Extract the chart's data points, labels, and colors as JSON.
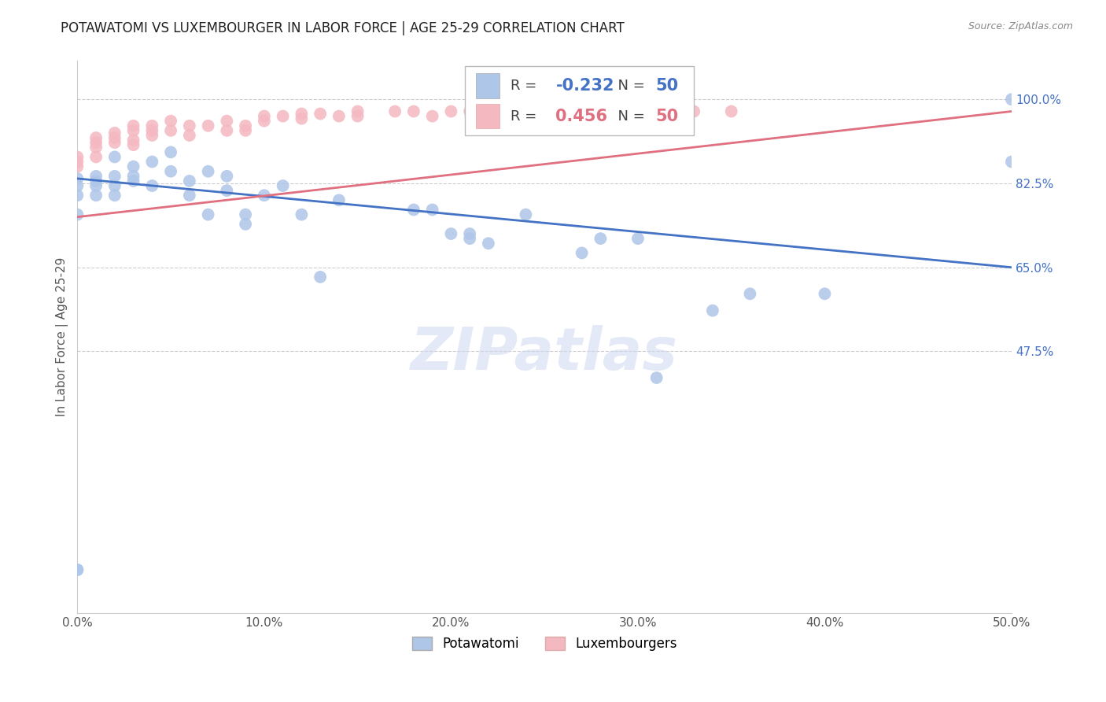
{
  "title": "POTAWATOMI VS LUXEMBOURGER IN LABOR FORCE | AGE 25-29 CORRELATION CHART",
  "source": "Source: ZipAtlas.com",
  "ylabel": "In Labor Force | Age 25-29",
  "x_min": 0.0,
  "x_max": 0.5,
  "y_min": -0.05,
  "y_max": 1.08,
  "x_tick_labels": [
    "0.0%",
    "10.0%",
    "20.0%",
    "30.0%",
    "40.0%",
    "50.0%"
  ],
  "x_tick_vals": [
    0.0,
    0.1,
    0.2,
    0.3,
    0.4,
    0.5
  ],
  "y_tick_labels": [
    "47.5%",
    "65.0%",
    "82.5%",
    "100.0%"
  ],
  "y_tick_vals": [
    0.475,
    0.65,
    0.825,
    1.0
  ],
  "grid_color": "#cccccc",
  "background_color": "#ffffff",
  "potawatomi_color": "#aec6e8",
  "luxembourger_color": "#f4b8c1",
  "potawatomi_line_color": "#4472c4",
  "luxembourger_line_color": "#e07080",
  "legend_blue_label": "Potawatomi",
  "legend_pink_label": "Luxembourgers",
  "r_blue": -0.232,
  "n_blue": 50,
  "r_pink": 0.456,
  "n_pink": 50,
  "watermark": "ZIPatlas",
  "potawatomi_x": [
    0.0,
    0.0,
    0.0,
    0.0,
    0.01,
    0.01,
    0.01,
    0.01,
    0.02,
    0.02,
    0.02,
    0.02,
    0.03,
    0.03,
    0.03,
    0.04,
    0.04,
    0.05,
    0.05,
    0.06,
    0.06,
    0.07,
    0.07,
    0.08,
    0.08,
    0.09,
    0.09,
    0.1,
    0.11,
    0.12,
    0.13,
    0.14,
    0.18,
    0.2,
    0.21,
    0.22,
    0.24,
    0.27,
    0.28,
    0.3,
    0.31,
    0.34,
    0.36,
    0.4,
    0.19,
    0.21,
    0.5,
    0.5,
    0.0,
    0.0
  ],
  "potawatomi_y": [
    0.835,
    0.82,
    0.8,
    0.76,
    0.84,
    0.83,
    0.82,
    0.8,
    0.88,
    0.84,
    0.82,
    0.8,
    0.86,
    0.84,
    0.83,
    0.87,
    0.82,
    0.89,
    0.85,
    0.83,
    0.8,
    0.85,
    0.76,
    0.84,
    0.81,
    0.76,
    0.74,
    0.8,
    0.82,
    0.76,
    0.63,
    0.79,
    0.77,
    0.72,
    0.72,
    0.7,
    0.76,
    0.68,
    0.71,
    0.71,
    0.42,
    0.56,
    0.595,
    0.595,
    0.77,
    0.71,
    0.87,
    1.0,
    0.02,
    0.02
  ],
  "luxembourger_x": [
    0.0,
    0.0,
    0.0,
    0.01,
    0.01,
    0.01,
    0.01,
    0.02,
    0.02,
    0.02,
    0.03,
    0.03,
    0.03,
    0.03,
    0.04,
    0.04,
    0.04,
    0.05,
    0.05,
    0.06,
    0.06,
    0.07,
    0.08,
    0.08,
    0.09,
    0.09,
    0.1,
    0.1,
    0.11,
    0.12,
    0.12,
    0.13,
    0.14,
    0.15,
    0.15,
    0.17,
    0.18,
    0.19,
    0.2,
    0.21,
    0.22,
    0.24,
    0.25,
    0.27,
    0.27,
    0.28,
    0.3,
    0.31,
    0.33,
    0.35
  ],
  "luxembourger_y": [
    0.88,
    0.87,
    0.86,
    0.92,
    0.91,
    0.9,
    0.88,
    0.93,
    0.92,
    0.91,
    0.945,
    0.935,
    0.915,
    0.905,
    0.945,
    0.935,
    0.925,
    0.955,
    0.935,
    0.945,
    0.925,
    0.945,
    0.955,
    0.935,
    0.945,
    0.935,
    0.965,
    0.955,
    0.965,
    0.97,
    0.96,
    0.97,
    0.965,
    0.975,
    0.965,
    0.975,
    0.975,
    0.965,
    0.975,
    0.975,
    0.965,
    0.975,
    0.975,
    0.975,
    0.975,
    0.975,
    0.975,
    0.975,
    0.975,
    0.975
  ],
  "blue_line_x0": 0.0,
  "blue_line_y0": 0.835,
  "blue_line_x1": 0.5,
  "blue_line_y1": 0.65,
  "pink_line_x0": 0.0,
  "pink_line_y0": 0.755,
  "pink_line_x1": 0.5,
  "pink_line_y1": 0.975
}
